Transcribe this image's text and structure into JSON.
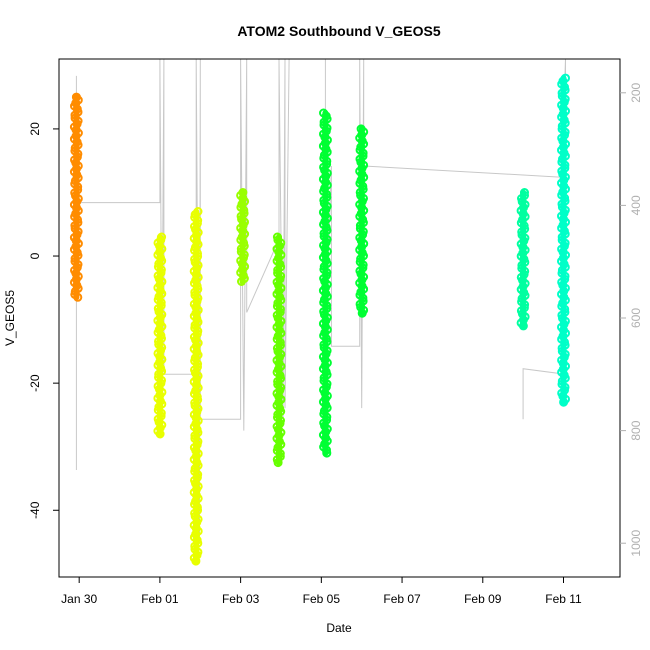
{
  "chart_data": {
    "type": "scatter",
    "title": "ATOM2 Southbound V_GEOS5",
    "xlabel": "Date",
    "ylabel": "V_GEOS5",
    "x_ticks": [
      "Jan 30",
      "Feb 01",
      "Feb 03",
      "Feb 05",
      "Feb 07",
      "Feb 09",
      "Feb 11"
    ],
    "x_tick_days": [
      30,
      32,
      34,
      36,
      38,
      40,
      42
    ],
    "xlim_days": [
      29.5,
      43.4
    ],
    "y_ticks": [
      -40,
      -20,
      0,
      20
    ],
    "ylim": [
      -50.5,
      31
    ],
    "right_axis_ticks": [
      200,
      400,
      600,
      800,
      1000
    ],
    "right_axis_color": "#b0b0b0",
    "right_axis_ylim": [
      1060,
      140
    ],
    "legend": "none",
    "grid": false,
    "series": [
      {
        "day": 29.93,
        "ymin": -6.5,
        "ymax": 25,
        "color": "#ff8c00",
        "alt_bottom": 800,
        "gap_band": [
          -5,
          15
        ]
      },
      {
        "day": 32.0,
        "ymin": -28,
        "ymax": 3,
        "color": "#e8ff00",
        "alt_bottom": 600
      },
      {
        "day": 32.9,
        "ymin": -48,
        "ymax": 7,
        "color": "#e8ff00",
        "alt_bottom": 1000
      },
      {
        "day": 34.05,
        "ymin": -4,
        "ymax": 10,
        "color": "#99ff00",
        "alt_bottom": 780
      },
      {
        "day": 34.95,
        "ymin": -32.5,
        "ymax": 3,
        "color": "#66ff00",
        "alt_bottom": 760
      },
      {
        "day": 36.1,
        "ymin": -31,
        "ymax": 22.5,
        "color": "#00ff33",
        "alt_bottom": 650
      },
      {
        "day": 37.0,
        "ymin": -9,
        "ymax": 20,
        "color": "#00ff33",
        "alt_bottom": 750
      },
      {
        "day": 41.0,
        "ymin": -11,
        "ymax": 10,
        "color": "#00ffa0",
        "alt_bottom": 790
      },
      {
        "day": 42.0,
        "ymin": -23,
        "ymax": 28,
        "color": "#00ffc8",
        "alt_bottom": 740
      }
    ],
    "flight_track": [
      {
        "day": 29.93,
        "alt": 170
      },
      {
        "day": 29.93,
        "alt": 870
      },
      {
        "day": 29.93,
        "alt": 395
      },
      {
        "day": 32.0,
        "alt": 395
      },
      {
        "day": 32.0,
        "alt": 140
      },
      {
        "day": 32.05,
        "alt": 700
      },
      {
        "day": 32.1,
        "alt": 140
      },
      {
        "day": 32.1,
        "alt": 700
      },
      {
        "day": 32.9,
        "alt": 700
      },
      {
        "day": 32.9,
        "alt": 140
      },
      {
        "day": 32.98,
        "alt": 1000
      },
      {
        "day": 33.0,
        "alt": 140
      },
      {
        "day": 33.0,
        "alt": 780
      },
      {
        "day": 34.0,
        "alt": 780
      },
      {
        "day": 34.0,
        "alt": 140
      },
      {
        "day": 34.08,
        "alt": 800
      },
      {
        "day": 34.15,
        "alt": 140
      },
      {
        "day": 34.15,
        "alt": 590
      },
      {
        "day": 34.95,
        "alt": 460
      },
      {
        "day": 34.95,
        "alt": 140
      },
      {
        "day": 35.05,
        "alt": 780
      },
      {
        "day": 35.1,
        "alt": 140
      },
      {
        "day": 35.1,
        "alt": 760
      },
      {
        "day": 35.2,
        "alt": 140
      },
      {
        "day": 35.95,
        "alt": 140
      },
      {
        "day": 36.1,
        "alt": 140
      },
      {
        "day": 36.1,
        "alt": 650
      },
      {
        "day": 36.25,
        "alt": 330
      },
      {
        "day": 36.25,
        "alt": 650
      },
      {
        "day": 36.95,
        "alt": 650
      },
      {
        "day": 36.95,
        "alt": 140
      },
      {
        "day": 37.0,
        "alt": 760
      },
      {
        "day": 37.05,
        "alt": 140
      },
      {
        "day": 37.05,
        "alt": 330
      },
      {
        "day": 41.95,
        "alt": 350
      },
      {
        "day": 42.05,
        "alt": 140
      },
      {
        "day": 42.05,
        "alt": 700
      },
      {
        "day": 41.0,
        "alt": 690
      },
      {
        "day": 41.0,
        "alt": 780
      }
    ]
  }
}
